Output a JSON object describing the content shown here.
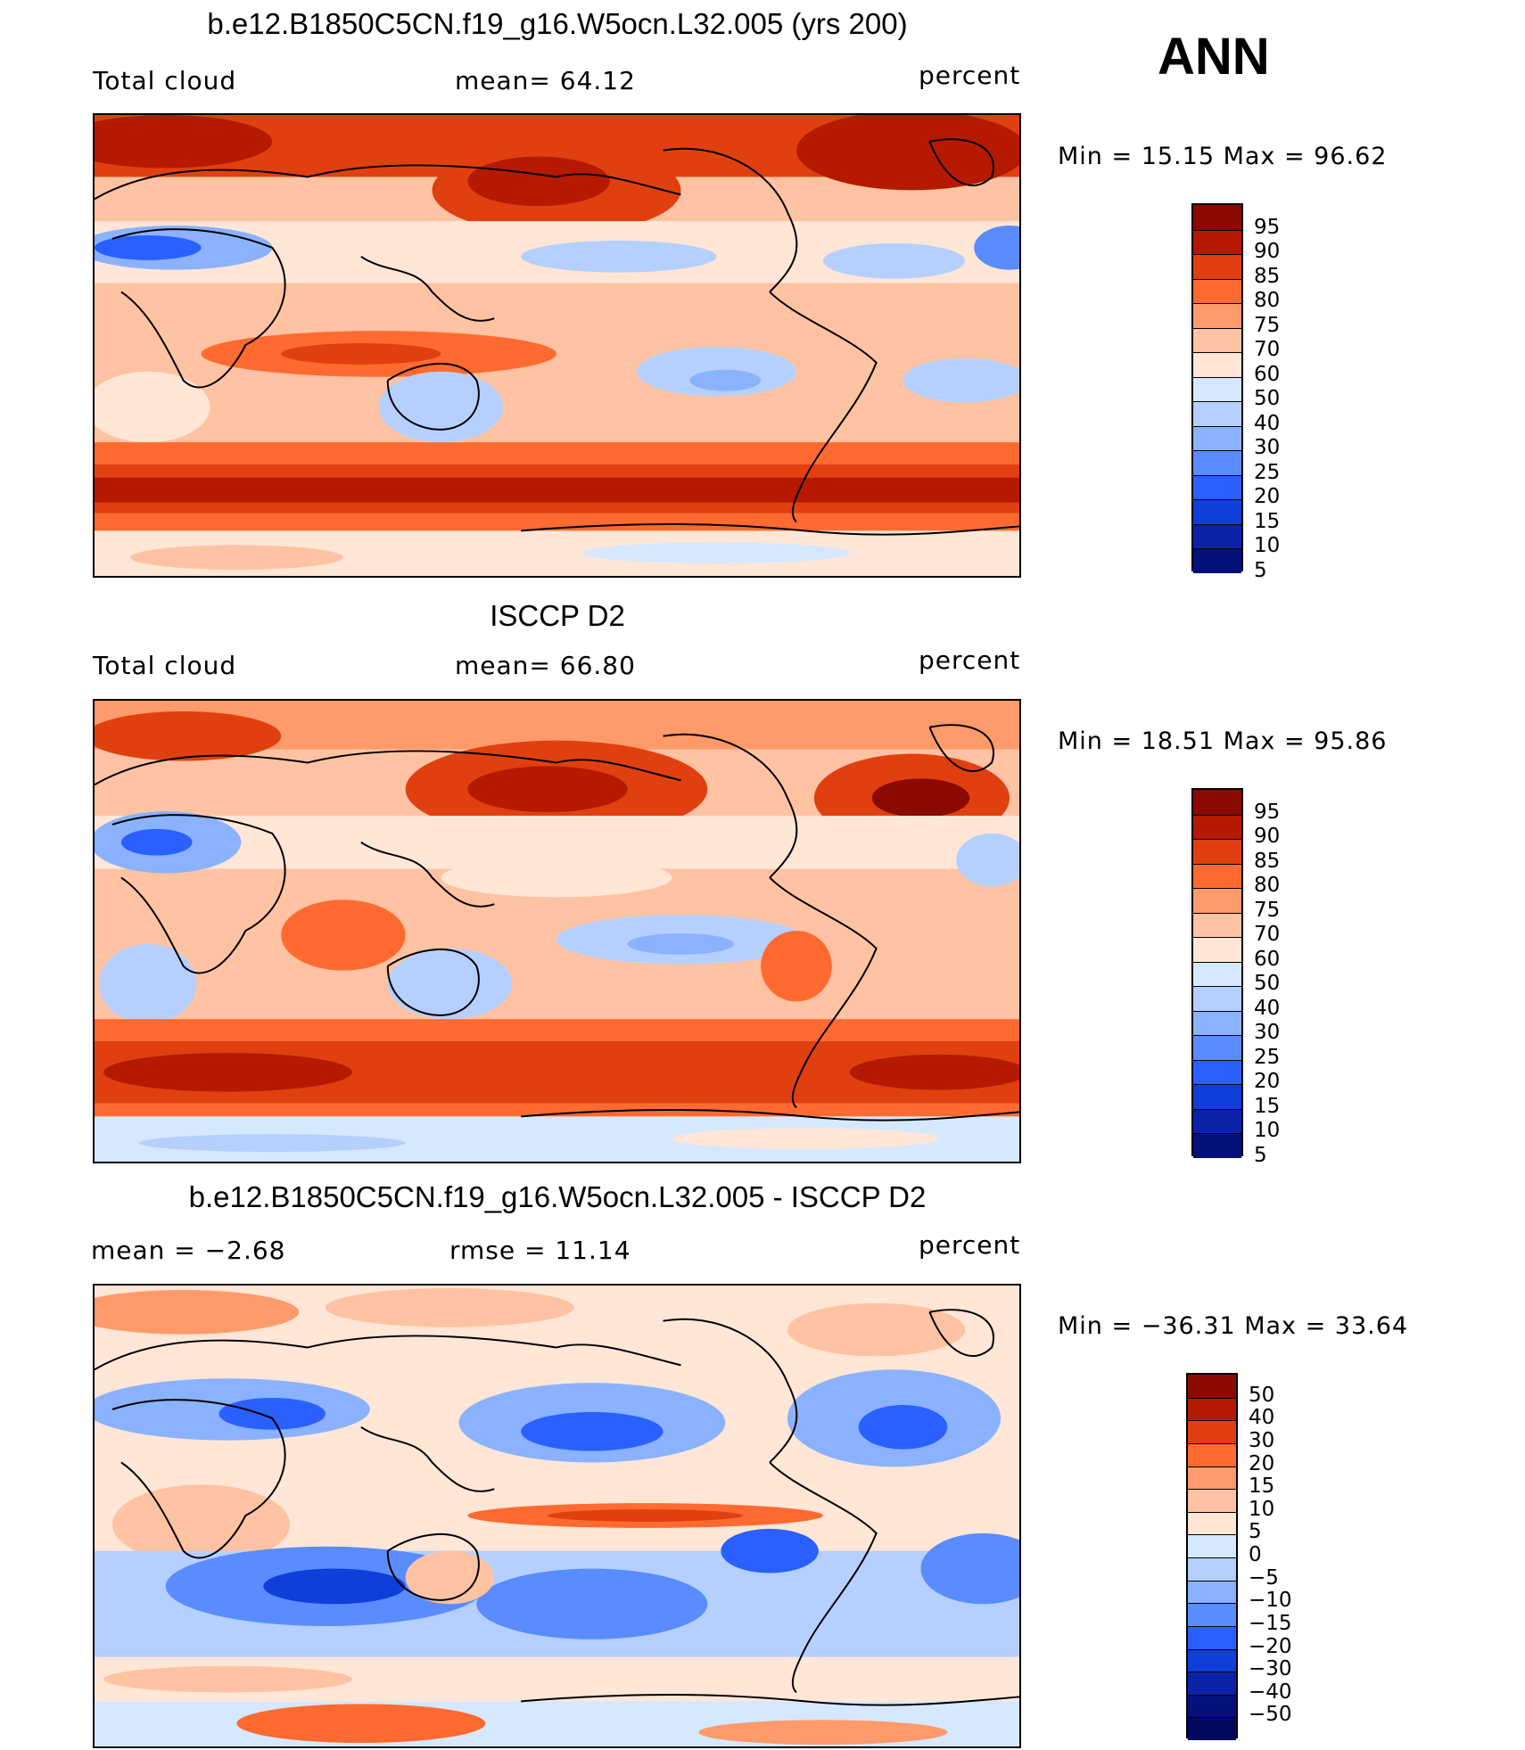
{
  "season": "ANN",
  "panels": [
    {
      "title": "b.e12.B1850C5CN.f19_g16.W5ocn.L32.005 (yrs 200)",
      "left_label": "Total cloud",
      "center_label": "mean=   64.12",
      "units": "percent",
      "minmax": "Min  =    15.15  Max  =    96.62",
      "colorbar": {
        "colors": [
          "#8b0a00",
          "#b51a00",
          "#e0400f",
          "#ff6a30",
          "#ff9a6a",
          "#ffc3a3",
          "#ffe6d6",
          "#d5e8ff",
          "#b5d0ff",
          "#8ab2ff",
          "#5a8cff",
          "#2a60ff",
          "#0f3ed8",
          "#0a22a8",
          "#05107a"
        ],
        "labels": [
          "95",
          "90",
          "85",
          "80",
          "75",
          "70",
          "60",
          "50",
          "40",
          "30",
          "25",
          "20",
          "15",
          "10",
          "5"
        ]
      }
    },
    {
      "title": "ISCCP D2",
      "left_label": "Total cloud",
      "center_label": "mean=   66.80",
      "units": "percent",
      "minmax": "Min  =    18.51  Max  =    95.86",
      "colorbar": {
        "colors": [
          "#8b0a00",
          "#b51a00",
          "#e0400f",
          "#ff6a30",
          "#ff9a6a",
          "#ffc3a3",
          "#ffe6d6",
          "#d5e8ff",
          "#b5d0ff",
          "#8ab2ff",
          "#5a8cff",
          "#2a60ff",
          "#0f3ed8",
          "#0a22a8",
          "#05107a"
        ],
        "labels": [
          "95",
          "90",
          "85",
          "80",
          "75",
          "70",
          "60",
          "50",
          "40",
          "30",
          "25",
          "20",
          "15",
          "10",
          "5"
        ]
      }
    },
    {
      "title": "b.e12.B1850C5CN.f19_g16.W5ocn.L32.005 - ISCCP D2",
      "left_label": "mean  =    −2.68",
      "center_label": "rmse  =    11.14",
      "units": "percent",
      "minmax": "Min  = −36.31  Max  =    33.64",
      "colorbar": {
        "colors": [
          "#8b0a00",
          "#b51a00",
          "#e0400f",
          "#ff6a30",
          "#ff9a6a",
          "#ffc3a3",
          "#ffe6d6",
          "#d5e8ff",
          "#b5d0ff",
          "#8ab2ff",
          "#5a8cff",
          "#2a60ff",
          "#0f3ed8",
          "#0a22a8",
          "#05107a",
          "#020860"
        ],
        "labels": [
          "50",
          "40",
          "30",
          "20",
          "15",
          "10",
          "5",
          "0",
          "−5",
          "−10",
          "−15",
          "−20",
          "−30",
          "−40",
          "−50"
        ]
      }
    }
  ]
}
